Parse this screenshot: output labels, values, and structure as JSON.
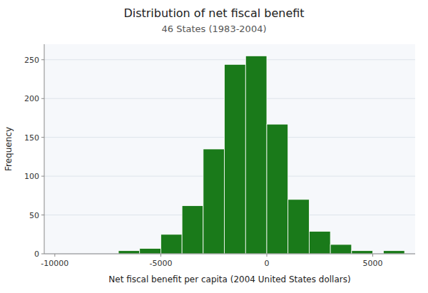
{
  "chart_data": {
    "type": "bar",
    "title": "Distribution of net fiscal benefit",
    "subtitle": "46 States (1983-2004)",
    "xlabel": "Net fiscal benefit per capita (2004 United States dollars)",
    "ylabel": "Frequency",
    "x": [
      -6500,
      -5500,
      -4500,
      -3500,
      -2500,
      -1500,
      -500,
      500,
      1500,
      2500,
      3500,
      4500,
      5500,
      6000
    ],
    "values": [
      4,
      7,
      25,
      62,
      135,
      244,
      255,
      167,
      70,
      29,
      12,
      4,
      0,
      4
    ],
    "color": "#1a7a1a",
    "xlim": [
      -10500,
      7000
    ],
    "ylim": [
      0,
      270
    ],
    "xticks": [
      -10000,
      -5000,
      0,
      5000
    ],
    "yticks": [
      0,
      50,
      100,
      150,
      200,
      250
    ],
    "grid": true
  }
}
